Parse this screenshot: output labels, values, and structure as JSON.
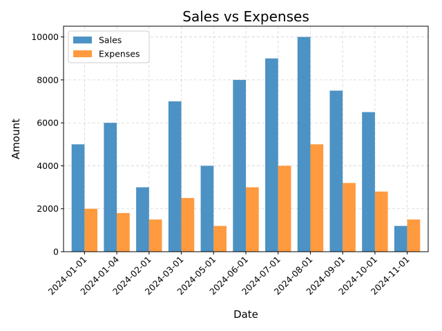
{
  "chart_data": {
    "type": "bar",
    "title": "Sales vs Expenses",
    "xlabel": "Date",
    "ylabel": "Amount",
    "categories": [
      "2024-01-01",
      "2024-01-04",
      "2024-02-01",
      "2024-03-01",
      "2024-05-01",
      "2024-06-01",
      "2024-07-01",
      "2024-08-01",
      "2024-09-01",
      "2024-10-01",
      "2024-11-01"
    ],
    "series": [
      {
        "name": "Sales",
        "color": "#4c92c4",
        "values": [
          5000,
          6000,
          3000,
          7000,
          4000,
          8000,
          9000,
          10000,
          7500,
          6500,
          1200
        ]
      },
      {
        "name": "Expenses",
        "color": "#ff9a3f",
        "values": [
          2000,
          1800,
          1500,
          2500,
          1200,
          3000,
          4000,
          5000,
          3200,
          2800,
          1500
        ]
      }
    ],
    "ylim": [
      0,
      10500
    ],
    "yticks": [
      0,
      2000,
      4000,
      6000,
      8000,
      10000
    ],
    "grid": true,
    "legend_position": "top-left",
    "xtick_rotation": 45
  }
}
